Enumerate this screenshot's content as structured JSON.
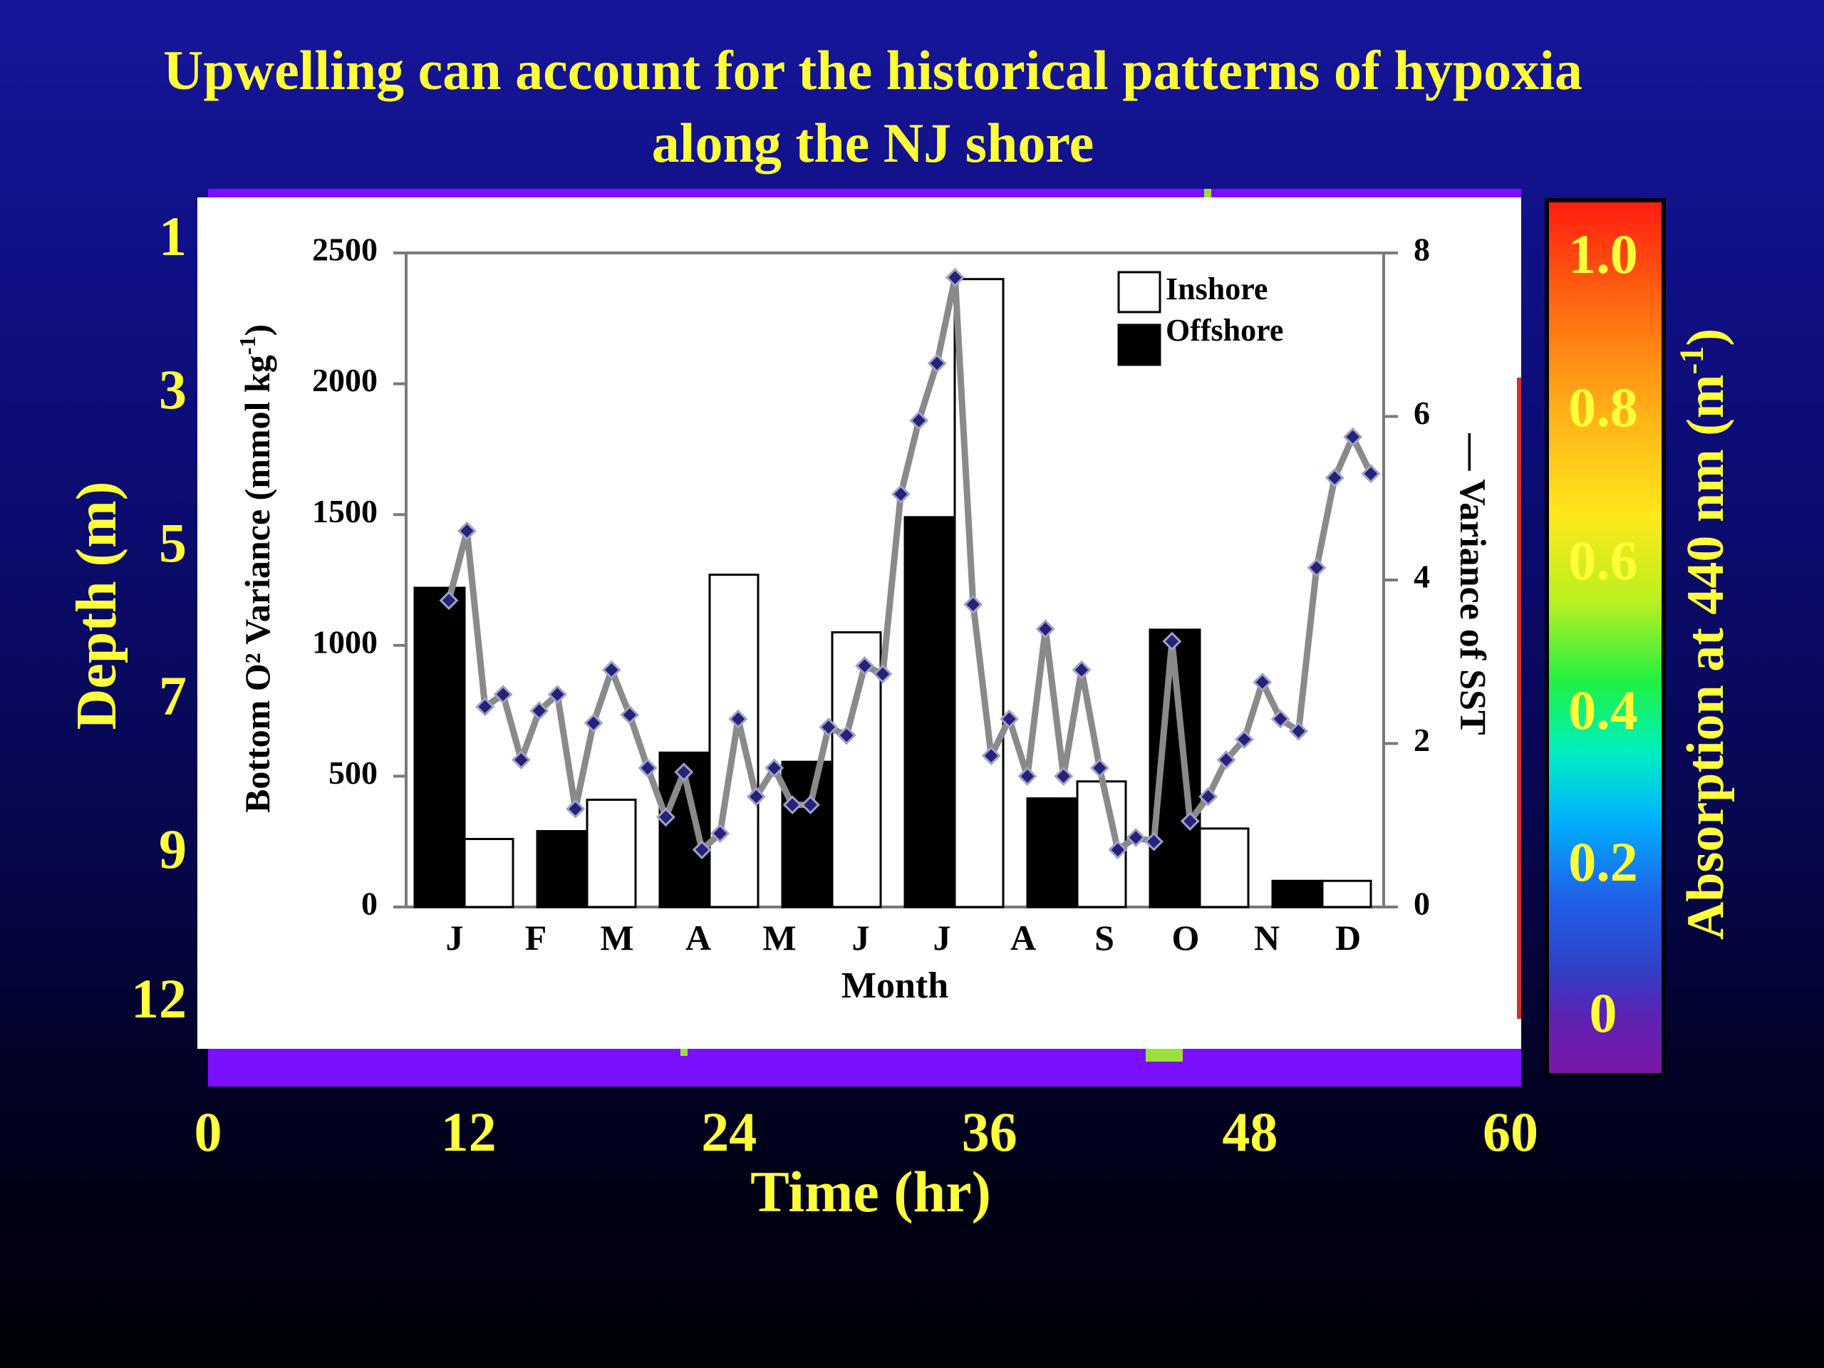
{
  "slide": {
    "title_line1": "Upwelling can account for the historical patterns of hypoxia",
    "title_line2": "along the NJ shore"
  },
  "background_plot": {
    "ylabel": "Depth (m)",
    "xlabel": "Time (hr)",
    "depth_ticks": [
      "1",
      "3",
      "5",
      "7",
      "9",
      "12"
    ],
    "time_ticks": [
      "0",
      "12",
      "24",
      "36",
      "48",
      "60"
    ]
  },
  "colorbar": {
    "label_main": "Absorption at 440 nm (m",
    "label_sup": "-1",
    "label_end": ")",
    "ticks": [
      "1.0",
      "0.8",
      "0.6",
      "0.4",
      "0.2",
      "0"
    ]
  },
  "colors": {
    "title": "#ffff3a",
    "sst_line": "#8a8a8a",
    "sst_marker": "#23237a",
    "offshore": "#000000",
    "inshore": "#ffffff"
  },
  "chart_data": {
    "type": "bar",
    "xlabel": "Month",
    "ylabel_main": "Bottom O² Variance (mmol kg",
    "ylabel_sup": "-1",
    "ylabel_end": ")",
    "y2label": "— Variance of SST",
    "categories": [
      "J",
      "F",
      "M",
      "A",
      "M",
      "J",
      "J",
      "A",
      "S",
      "O",
      "N",
      "D"
    ],
    "ylim": [
      0,
      2500
    ],
    "y_ticks": [
      "0",
      "500",
      "1000",
      "1500",
      "2000",
      "2500"
    ],
    "y2lim": [
      0,
      8
    ],
    "y2_ticks": [
      "0",
      "2",
      "4",
      "6",
      "8"
    ],
    "legend": {
      "inshore": "Inshore",
      "offshore": "Offshore"
    },
    "bar_pairs": [
      {
        "offshore": 1220,
        "inshore": 260
      },
      {
        "offshore": 290,
        "inshore": 410
      },
      {
        "offshore": 590,
        "inshore": 1270
      },
      {
        "offshore": 555,
        "inshore": 1050
      },
      {
        "offshore": 1490,
        "inshore": 2400
      },
      {
        "offshore": 415,
        "inshore": 480
      },
      {
        "offshore": 1060,
        "inshore": 300
      },
      {
        "offshore": 100,
        "inshore": 100
      }
    ],
    "sst_series": {
      "values": [
        3.75,
        4.6,
        2.45,
        2.6,
        1.8,
        2.4,
        2.6,
        1.2,
        2.25,
        2.9,
        2.35,
        1.7,
        1.1,
        1.65,
        0.7,
        0.9,
        2.3,
        1.35,
        1.7,
        1.25,
        1.25,
        2.2,
        2.1,
        2.95,
        2.85,
        5.05,
        5.95,
        6.65,
        7.7,
        3.7,
        1.85,
        2.3,
        1.6,
        3.4,
        1.6,
        2.9,
        1.7,
        0.7,
        0.85,
        0.8,
        3.25,
        1.05,
        1.35,
        1.8,
        2.05,
        2.75,
        2.3,
        2.15,
        4.15,
        5.25,
        5.75,
        5.3
      ]
    }
  }
}
